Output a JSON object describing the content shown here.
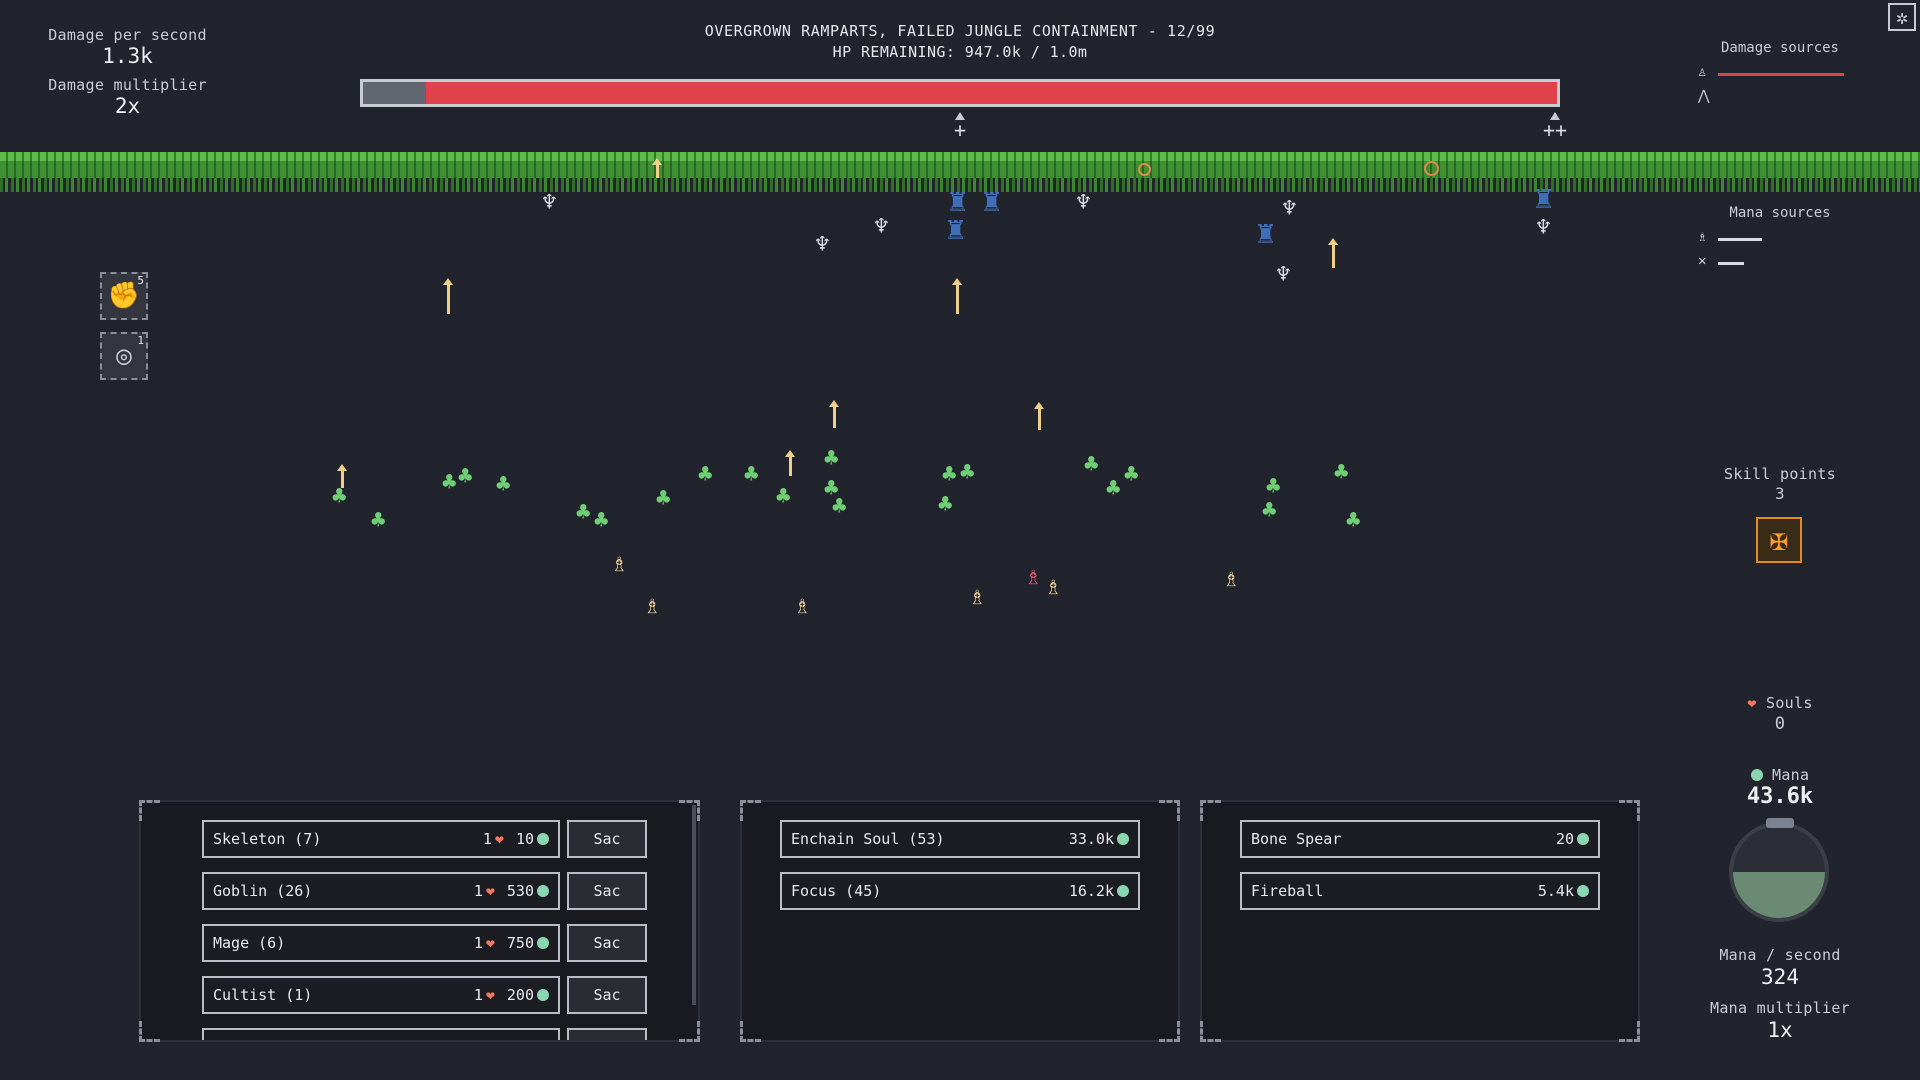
{
  "stats": {
    "dps_label": "Damage per second",
    "dps_value": "1.3k",
    "dmult_label": "Damage multiplier",
    "dmult_value": "2x"
  },
  "boss": {
    "title": "OVERGROWN RAMPARTS, FAILED JUNGLE CONTAINMENT - 12/99",
    "hp_text": "HP REMAINING: 947.0k / 1.0m",
    "hp_fraction": 0.947,
    "markers": [
      "+",
      "++"
    ]
  },
  "damage_sources": {
    "title": "Damage sources",
    "icons": [
      "skeleton-icon",
      "bat-icon"
    ]
  },
  "mana_sources": {
    "title": "Mana sources",
    "icons": [
      "mage-icon",
      "crossed-icon"
    ]
  },
  "skill_buttons": [
    {
      "icon": "fist-icon",
      "count": "5"
    },
    {
      "icon": "target-icon",
      "count": "1"
    }
  ],
  "skill_points": {
    "label": "Skill points",
    "value": "3"
  },
  "souls": {
    "label": "Souls",
    "value": "0"
  },
  "mana": {
    "label": "Mana",
    "value": "43.6k",
    "orb_fill": 0.5,
    "per_second_label": "Mana / second",
    "per_second_value": "324",
    "mult_label": "Mana multiplier",
    "mult_value": "1x"
  },
  "units": [
    {
      "name": "Skeleton (7)",
      "souls": "1",
      "cost": "10",
      "action": "Sac"
    },
    {
      "name": "Goblin (26)",
      "souls": "1",
      "cost": "530",
      "action": "Sac"
    },
    {
      "name": "Mage (6)",
      "souls": "1",
      "cost": "750",
      "action": "Sac"
    },
    {
      "name": "Cultist (1)",
      "souls": "1",
      "cost": "200",
      "action": "Sac"
    }
  ],
  "upgrades": [
    {
      "name": "Enchain Soul (53)",
      "cost": "33.0k"
    },
    {
      "name": "Focus (45)",
      "cost": "16.2k"
    }
  ],
  "spells": [
    {
      "name": "Bone Spear",
      "cost": "20"
    },
    {
      "name": "Fireball",
      "cost": "5.4k"
    }
  ],
  "colors": {
    "hp": "#e0424c",
    "grass": "#5dbb46",
    "goblin": "#6fcf74",
    "mage": "#f2d39a",
    "brute": "#3f6fb8",
    "mana": "#8ad6b0",
    "skill": "#e38a1e"
  }
}
